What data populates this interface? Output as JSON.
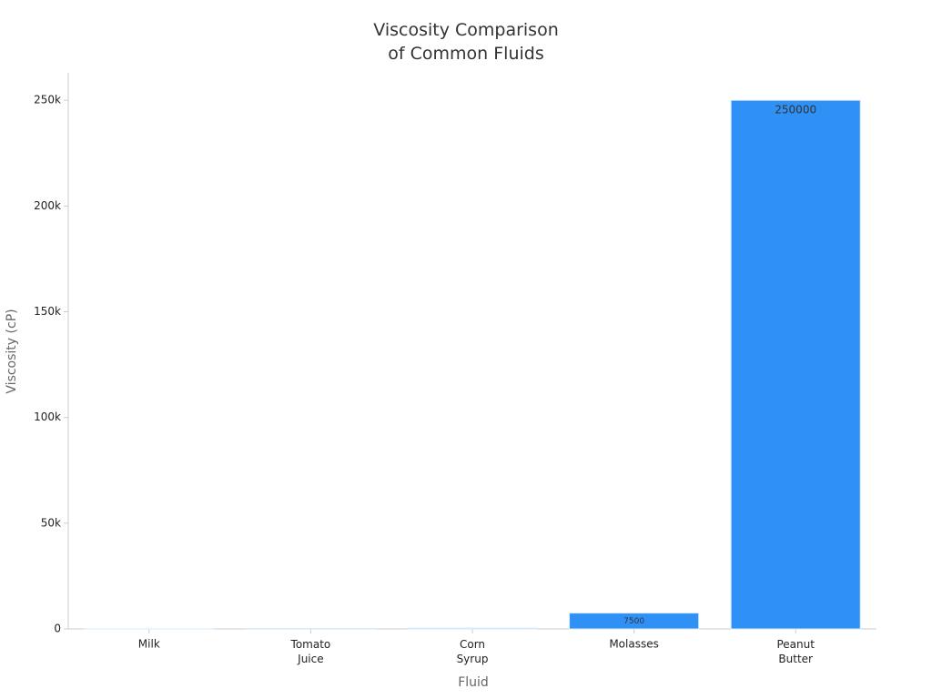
{
  "chart_data": {
    "type": "bar",
    "title": "Viscosity Comparison\nof Common Fluids",
    "x_label": "Fluid",
    "y_label": "Viscosity (cP)",
    "categories": [
      "Milk",
      "Tomato\nJuice",
      "Corn\nSyrup",
      "Molasses",
      "Peanut\nButter"
    ],
    "values": [
      3,
      200,
      400,
      7500,
      250000
    ],
    "color": "#2f91f5",
    "ylim": [
      0,
      263000
    ],
    "yticks": [
      0,
      {
        "value": 50000,
        "label": "50k"
      },
      {
        "value": 100000,
        "label": "100k"
      },
      {
        "value": 150000,
        "label": "150k"
      },
      {
        "value": 200000,
        "label": "200k"
      },
      {
        "value": 250000,
        "label": "250k"
      }
    ],
    "grid": false
  }
}
